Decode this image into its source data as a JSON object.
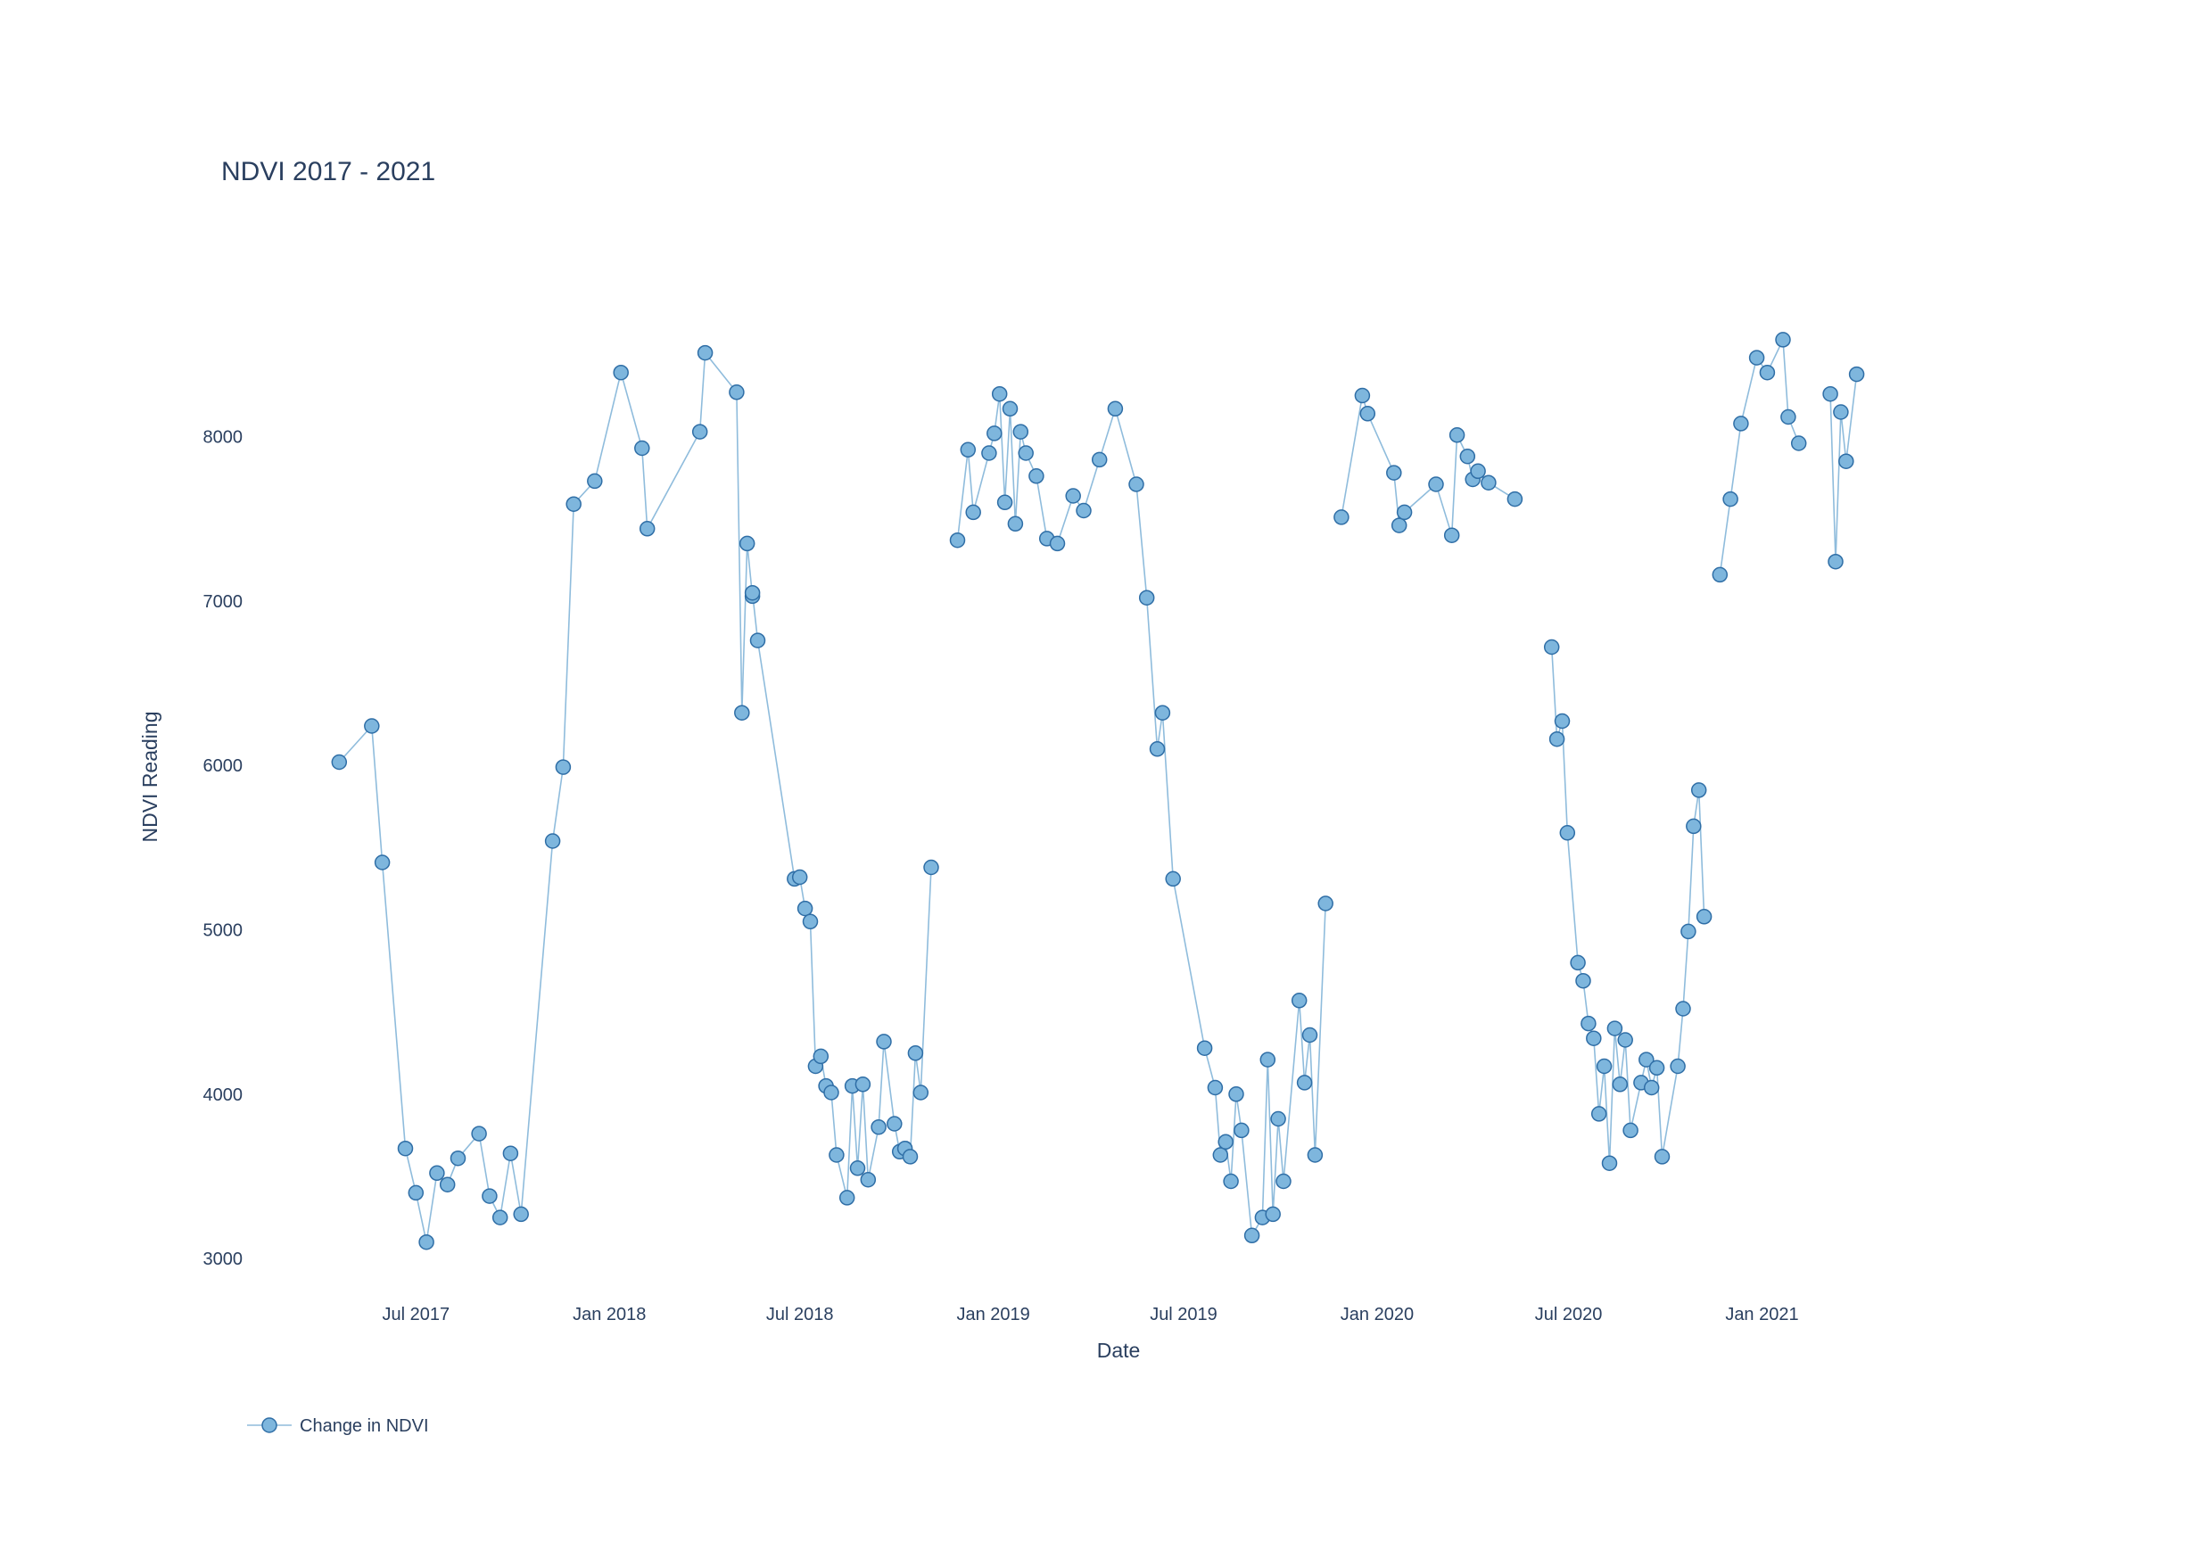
{
  "chart_data": {
    "type": "line",
    "mode": "lines+markers",
    "title": "NDVI 2017 - 2021",
    "xlabel": "Date",
    "ylabel": "NDVI Reading",
    "xlim": [
      "2017-03-15",
      "2021-06-15"
    ],
    "ylim": [
      2800,
      9300
    ],
    "grid": false,
    "legend_position": "bottom-left",
    "x_ticks": [
      {
        "date": "2017-07-01",
        "label": "Jul 2017"
      },
      {
        "date": "2018-01-01",
        "label": "Jan 2018"
      },
      {
        "date": "2018-07-01",
        "label": "Jul 2018"
      },
      {
        "date": "2019-01-01",
        "label": "Jan 2019"
      },
      {
        "date": "2019-07-01",
        "label": "Jul 2019"
      },
      {
        "date": "2020-01-01",
        "label": "Jan 2020"
      },
      {
        "date": "2020-07-01",
        "label": "Jul 2020"
      },
      {
        "date": "2021-01-01",
        "label": "Jan 2021"
      }
    ],
    "y_ticks": [
      3000,
      4000,
      5000,
      6000,
      7000,
      8000
    ],
    "colors": {
      "marker_fill": "#7eb6dd",
      "marker_edge": "#2f6ea6",
      "line": "#8fbcdc"
    },
    "series": [
      {
        "name": "Change in NDVI",
        "points": [
          [
            "2017-04-19",
            6020
          ],
          [
            "2017-05-20",
            6240
          ],
          [
            "2017-05-30",
            5410
          ],
          [
            "2017-06-21",
            3670
          ],
          [
            "2017-07-01",
            3400
          ],
          [
            "2017-07-11",
            3100
          ],
          [
            "2017-07-21",
            3520
          ],
          [
            "2017-07-31",
            3450
          ],
          [
            "2017-08-10",
            3610
          ],
          [
            "2017-08-30",
            3760
          ],
          [
            "2017-09-09",
            3380
          ],
          [
            "2017-09-19",
            3250
          ],
          [
            "2017-09-29",
            3640
          ],
          [
            "2017-10-09",
            3270
          ],
          [
            "2017-11-08",
            5540
          ],
          [
            "2017-11-18",
            5990
          ],
          [
            "2017-11-28",
            7590
          ],
          [
            "2017-12-18",
            7730
          ],
          [
            "2018-01-12",
            8390
          ],
          [
            "2018-02-01",
            7930
          ],
          [
            "2018-02-06",
            7440
          ],
          [
            "2018-03-28",
            8030
          ],
          [
            "2018-04-02",
            8510
          ],
          [
            "2018-05-02",
            8270
          ],
          [
            "2018-05-07",
            6320
          ],
          [
            "2018-05-12",
            7350
          ],
          [
            "2018-05-17",
            7030
          ],
          [
            "2018-05-17",
            7050
          ],
          [
            "2018-05-22",
            6760
          ],
          [
            "2018-06-26",
            5310
          ],
          [
            "2018-07-01",
            5320
          ],
          [
            "2018-07-06",
            5130
          ],
          [
            "2018-07-11",
            5050
          ],
          [
            "2018-07-16",
            4170
          ],
          [
            "2018-07-21",
            4230
          ],
          [
            "2018-07-26",
            4050
          ],
          [
            "2018-07-31",
            4010
          ],
          [
            "2018-08-05",
            3630
          ],
          [
            "2018-08-15",
            3370
          ],
          [
            "2018-08-20",
            4050
          ],
          [
            "2018-08-25",
            3550
          ],
          [
            "2018-08-30",
            4060
          ],
          [
            "2018-09-04",
            3480
          ],
          [
            "2018-09-14",
            3800
          ],
          [
            "2018-09-19",
            4320
          ],
          [
            "2018-09-29",
            3820
          ],
          [
            "2018-10-04",
            3650
          ],
          [
            "2018-10-09",
            3670
          ],
          [
            "2018-10-14",
            3620
          ],
          [
            "2018-10-19",
            4250
          ],
          [
            "2018-10-24",
            4010
          ],
          [
            "2018-11-03",
            5380
          ]
        ]
      },
      {
        "name": "Change in NDVI",
        "points": [
          [
            "2018-11-28",
            7370
          ],
          [
            "2018-12-08",
            7920
          ],
          [
            "2018-12-13",
            7540
          ],
          [
            "2018-12-28",
            7900
          ],
          [
            "2019-01-02",
            8020
          ],
          [
            "2019-01-07",
            8260
          ],
          [
            "2019-01-12",
            7600
          ],
          [
            "2019-01-17",
            8170
          ],
          [
            "2019-01-22",
            7470
          ],
          [
            "2019-01-27",
            8030
          ],
          [
            "2019-02-01",
            7900
          ],
          [
            "2019-02-11",
            7760
          ],
          [
            "2019-02-21",
            7380
          ],
          [
            "2019-03-03",
            7350
          ],
          [
            "2019-03-18",
            7640
          ],
          [
            "2019-03-28",
            7550
          ],
          [
            "2019-04-12",
            7860
          ],
          [
            "2019-04-27",
            8170
          ],
          [
            "2019-05-17",
            7710
          ],
          [
            "2019-05-27",
            7020
          ],
          [
            "2019-06-06",
            6100
          ],
          [
            "2019-06-11",
            6320
          ],
          [
            "2019-06-21",
            5310
          ],
          [
            "2019-07-21",
            4280
          ],
          [
            "2019-07-31",
            4040
          ],
          [
            "2019-08-05",
            3630
          ],
          [
            "2019-08-10",
            3710
          ],
          [
            "2019-08-15",
            3470
          ],
          [
            "2019-08-20",
            4000
          ],
          [
            "2019-08-25",
            3780
          ],
          [
            "2019-09-04",
            3140
          ],
          [
            "2019-09-14",
            3250
          ],
          [
            "2019-09-19",
            4210
          ],
          [
            "2019-09-24",
            3270
          ],
          [
            "2019-09-29",
            3850
          ],
          [
            "2019-10-04",
            3470
          ],
          [
            "2019-10-19",
            4570
          ],
          [
            "2019-10-24",
            4070
          ],
          [
            "2019-10-29",
            4360
          ],
          [
            "2019-11-03",
            3630
          ],
          [
            "2019-11-13",
            5160
          ]
        ]
      },
      {
        "name": "Change in NDVI",
        "points": [
          [
            "2019-11-28",
            7510
          ],
          [
            "2019-12-18",
            8250
          ],
          [
            "2019-12-23",
            8140
          ],
          [
            "2020-01-17",
            7780
          ],
          [
            "2020-01-22",
            7460
          ],
          [
            "2020-01-27",
            7540
          ],
          [
            "2020-02-26",
            7710
          ],
          [
            "2020-03-12",
            7400
          ],
          [
            "2020-03-17",
            8010
          ],
          [
            "2020-03-27",
            7880
          ],
          [
            "2020-04-01",
            7740
          ],
          [
            "2020-04-06",
            7790
          ],
          [
            "2020-04-16",
            7720
          ],
          [
            "2020-05-11",
            7620
          ]
        ]
      },
      {
        "name": "Change in NDVI",
        "points": [
          [
            "2020-06-15",
            6720
          ],
          [
            "2020-06-20",
            6160
          ],
          [
            "2020-06-25",
            6270
          ],
          [
            "2020-06-30",
            5590
          ],
          [
            "2020-07-10",
            4800
          ],
          [
            "2020-07-15",
            4690
          ],
          [
            "2020-07-20",
            4430
          ],
          [
            "2020-07-25",
            4340
          ],
          [
            "2020-07-30",
            3880
          ],
          [
            "2020-08-04",
            4170
          ],
          [
            "2020-08-09",
            3580
          ],
          [
            "2020-08-14",
            4400
          ],
          [
            "2020-08-19",
            4060
          ],
          [
            "2020-08-24",
            4330
          ],
          [
            "2020-08-29",
            3780
          ],
          [
            "2020-09-08",
            4070
          ],
          [
            "2020-09-13",
            4210
          ],
          [
            "2020-09-18",
            4040
          ],
          [
            "2020-09-23",
            4160
          ],
          [
            "2020-09-28",
            3620
          ],
          [
            "2020-10-13",
            4170
          ],
          [
            "2020-10-18",
            4520
          ],
          [
            "2020-10-23",
            4990
          ],
          [
            "2020-10-28",
            5630
          ],
          [
            "2020-11-02",
            5850
          ],
          [
            "2020-11-07",
            5080
          ]
        ]
      },
      {
        "name": "Change in NDVI",
        "points": [
          [
            "2020-11-22",
            7160
          ],
          [
            "2020-12-02",
            7620
          ],
          [
            "2020-12-12",
            8080
          ],
          [
            "2020-12-27",
            8480
          ],
          [
            "2021-01-06",
            8390
          ],
          [
            "2021-01-21",
            8590
          ],
          [
            "2021-01-26",
            8120
          ],
          [
            "2021-02-05",
            7960
          ]
        ]
      },
      {
        "name": "Change in NDVI",
        "points": [
          [
            "2021-03-07",
            8260
          ],
          [
            "2021-03-12",
            7240
          ],
          [
            "2021-03-17",
            8150
          ],
          [
            "2021-03-22",
            7850
          ],
          [
            "2021-04-01",
            8380
          ]
        ]
      }
    ],
    "legend": [
      {
        "label": "Change in NDVI"
      }
    ]
  }
}
